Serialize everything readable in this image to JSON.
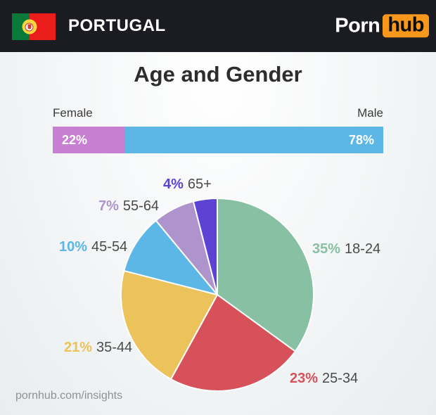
{
  "header": {
    "country": "PORTUGAL",
    "logo": {
      "part1": "Porn",
      "part2": "hub"
    }
  },
  "title": "Age and Gender",
  "gender_bar": {
    "female_label": "Female",
    "male_label": "Male"
  },
  "chart_data": [
    {
      "type": "bar",
      "subtype": "stacked-horizontal",
      "categories": [
        "Female",
        "Male"
      ],
      "values": [
        22,
        78
      ],
      "value_labels": [
        "22%",
        "78%"
      ],
      "colors": [
        "#c77fd2",
        "#5cb6e6"
      ]
    },
    {
      "type": "pie",
      "categories": [
        "18-24",
        "25-34",
        "35-44",
        "45-54",
        "55-64",
        "65+"
      ],
      "values": [
        35,
        23,
        21,
        10,
        7,
        4
      ],
      "value_labels": [
        "35%",
        "23%",
        "21%",
        "10%",
        "7%",
        "4%"
      ],
      "colors": [
        "#87c0a2",
        "#d6515a",
        "#ecc25a",
        "#5cb6e6",
        "#ae93cc",
        "#5c43d4"
      ],
      "start_angle": "top",
      "direction": "clockwise",
      "legend_position": "around-slices",
      "label_text_color": "#4a4a4a"
    }
  ],
  "footer": {
    "url": "pornhub.com/insights"
  }
}
